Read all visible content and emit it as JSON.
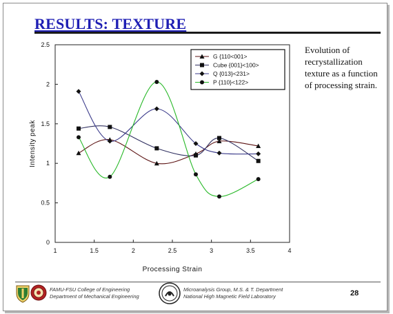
{
  "slide": {
    "title": "RESULTS: TEXTURE",
    "caption": "Evolution of recrystallization texture as a function of processing strain.",
    "page_number": "28"
  },
  "footer": {
    "left_line1": "FAMU-FSU College of Engineering",
    "left_line2": "Department of Mechanical Engineering",
    "right_line1": "Microanalysis Group, M.S. & T. Department",
    "right_line2": "National High Magnetic Field Laboratory"
  },
  "chart_data": {
    "type": "line",
    "title": "",
    "xlabel": "Processing Strain",
    "ylabel": "Intensity peak",
    "xlim": [
      1,
      4
    ],
    "ylim": [
      0,
      2.5
    ],
    "xticks": [
      "1",
      "1.5",
      "2",
      "2.5",
      "3",
      "3.5",
      "4"
    ],
    "yticks": [
      "0",
      "0.5",
      "1",
      "1.5",
      "2",
      "2.5"
    ],
    "legend_position": "top-right",
    "grid": false,
    "x": [
      1.3,
      1.7,
      2.3,
      2.8,
      3.1,
      3.6
    ],
    "series": [
      {
        "name": "G {110<001>",
        "marker": "triangle",
        "color": "#5a1010",
        "values": [
          1.13,
          1.3,
          1.0,
          1.12,
          1.28,
          1.22
        ]
      },
      {
        "name": "Cube {001}<100>",
        "marker": "square",
        "color": "#303060",
        "values": [
          1.44,
          1.46,
          1.19,
          1.1,
          1.32,
          1.03
        ]
      },
      {
        "name": "Q {013}<231>",
        "marker": "diamond",
        "color": "#3a3a8a",
        "values": [
          1.91,
          1.28,
          1.69,
          1.25,
          1.13,
          1.12
        ]
      },
      {
        "name": "P {110}<122>",
        "marker": "circle",
        "color": "#27b827",
        "values": [
          1.33,
          0.83,
          2.03,
          0.86,
          0.58,
          0.8
        ]
      }
    ]
  }
}
